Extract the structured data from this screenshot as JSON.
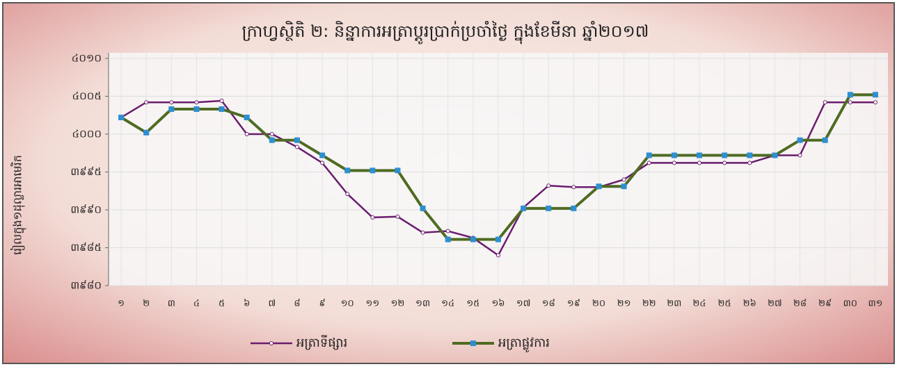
{
  "chart_data": {
    "type": "line",
    "title": "ក្រាហ្វស្ថិតិ ២: និន្នាការអត្រាប្តូរប្រាក់ប្រចាំថ្ងៃ ក្នុងខែមីនា ឆ្នាំ២០១៧",
    "y_label": "រៀលក្នុង១ដុល្លារអាមេរិក",
    "categories": [
      "១",
      "២",
      "៣",
      "៤",
      "៥",
      "៦",
      "៧",
      "៨",
      "៩",
      "១០",
      "១១",
      "១២",
      "១៣",
      "១៤",
      "១៥",
      "១៦",
      "១៧",
      "១៨",
      "១៩",
      "២០",
      "២១",
      "២២",
      "២៣",
      "២៤",
      "២៥",
      "២៦",
      "២៧",
      "២៨",
      "២៩",
      "៣០",
      "៣១"
    ],
    "series": [
      {
        "name": "អត្រាទីផ្សារ",
        "color": "#6a1b6e",
        "marker_color": "#ffffff",
        "values": [
          4002.2,
          4004.2,
          4004.2,
          4004.2,
          4004.4,
          4000,
          4000,
          3998.3,
          3996.2,
          3992.1,
          3989,
          3989.1,
          3987,
          3987.2,
          3986.3,
          3984,
          3990.3,
          3993.2,
          3993,
          3993,
          3994,
          3996.2,
          3996.2,
          3996.2,
          3996.2,
          3996.2,
          3997.2,
          3997.2,
          4004.2,
          4004.2,
          4004.2
        ]
      },
      {
        "name": "អត្រាផ្លូវការ",
        "color": "#4f6b22",
        "marker_color": "#2e8fd0",
        "values": [
          4002.2,
          4000.2,
          4003.3,
          4003.3,
          4003.3,
          4002.2,
          3999.2,
          3999.2,
          3997.2,
          3995.2,
          3995.2,
          3995.2,
          3990.2,
          3986.1,
          3986.1,
          3986.1,
          3990.2,
          3990.2,
          3990.2,
          3993.1,
          3993.1,
          3997.2,
          3997.2,
          3997.2,
          3997.2,
          3997.2,
          3997.2,
          3999.2,
          3999.2,
          4005.2,
          4005.2
        ]
      }
    ],
    "ylim": [
      3980,
      4010
    ],
    "yticks": [
      {
        "value": 3980,
        "label": "៣៩៨០"
      },
      {
        "value": 3985,
        "label": "៣៩៨៥"
      },
      {
        "value": 3990,
        "label": "៣៩៩០"
      },
      {
        "value": 3995,
        "label": "៣៩៩៥"
      },
      {
        "value": 4000,
        "label": "៤០០០"
      },
      {
        "value": 4005,
        "label": "៤០០៥"
      },
      {
        "value": 4010,
        "label": "៤០១០"
      }
    ],
    "grid": true,
    "legend": "bottom"
  }
}
